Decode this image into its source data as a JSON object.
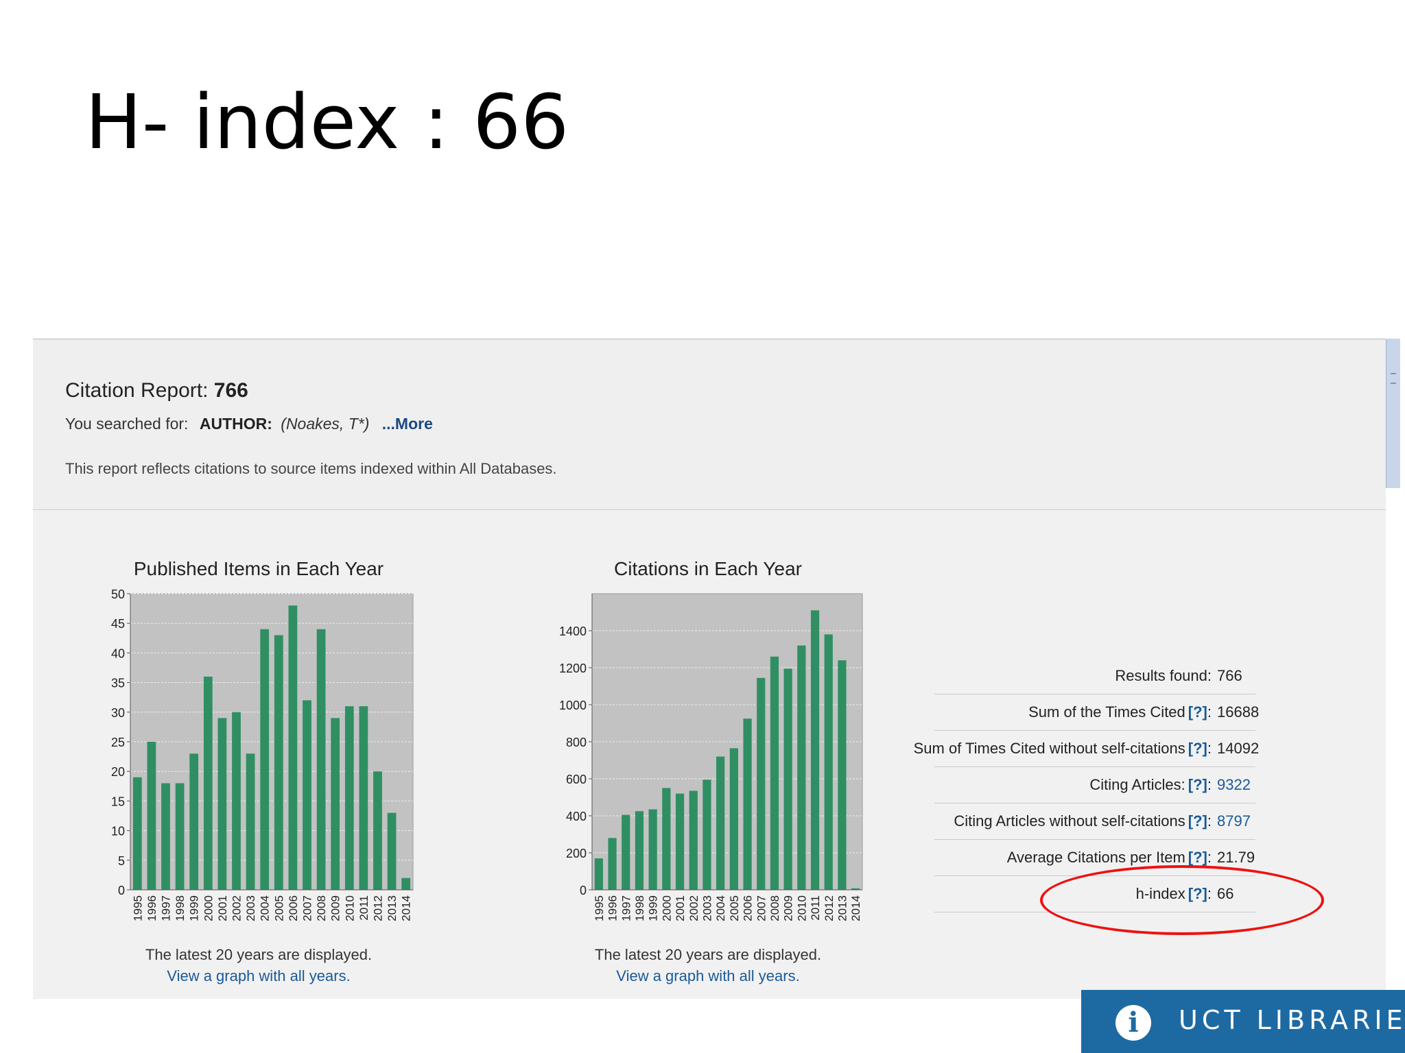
{
  "slide": {
    "title": "H- index : 66"
  },
  "report": {
    "title_prefix": "Citation Report:",
    "title_count": "766",
    "searched_label": "You searched for:",
    "searched_key": "AUTHOR:",
    "searched_query": "(Noakes, T*)",
    "more_link": "...More",
    "reflects_text": "This report reflects citations to source items indexed within All Databases."
  },
  "charts": {
    "published": {
      "title": "Published Items in Each Year",
      "displayed": "The latest 20 years are displayed.",
      "link": "View a graph with all years."
    },
    "citations": {
      "title": "Citations in Each Year",
      "displayed": "The latest 20 years are displayed.",
      "link": "View a graph with all years."
    }
  },
  "chart_data": [
    {
      "type": "bar",
      "title": "Published Items in Each Year",
      "categories": [
        "1995",
        "1996",
        "1997",
        "1998",
        "1999",
        "2000",
        "2001",
        "2002",
        "2003",
        "2004",
        "2005",
        "2006",
        "2007",
        "2008",
        "2009",
        "2010",
        "2011",
        "2012",
        "2013",
        "2014"
      ],
      "values": [
        19,
        25,
        18,
        18,
        23,
        36,
        29,
        30,
        23,
        44,
        43,
        48,
        32,
        44,
        29,
        31,
        31,
        20,
        13,
        2
      ],
      "ylim": [
        0,
        50
      ],
      "yticks": [
        0,
        5,
        10,
        15,
        20,
        25,
        30,
        35,
        40,
        45,
        50
      ],
      "grid": true,
      "bar_color": "#2f8f62",
      "plot_bg": "#c2c2c2"
    },
    {
      "type": "bar",
      "title": "Citations in Each Year",
      "categories": [
        "1995",
        "1996",
        "1997",
        "1998",
        "1999",
        "2000",
        "2001",
        "2002",
        "2003",
        "2004",
        "2005",
        "2006",
        "2007",
        "2008",
        "2009",
        "2010",
        "2011",
        "2012",
        "2013",
        "2014"
      ],
      "values": [
        170,
        280,
        405,
        425,
        435,
        550,
        520,
        535,
        595,
        720,
        765,
        925,
        1145,
        1260,
        1195,
        1320,
        1510,
        1380,
        1240,
        8
      ],
      "ylim": [
        0,
        1600
      ],
      "yticks": [
        0,
        200,
        400,
        600,
        800,
        1000,
        1200,
        1400
      ],
      "grid": true,
      "bar_color": "#2f8f62",
      "plot_bg": "#c2c2c2"
    }
  ],
  "stats": [
    {
      "label": "Results found:",
      "help": "",
      "value": "766",
      "value_link": false
    },
    {
      "label": "Sum of the Times Cited",
      "help": "[?]",
      "value": "16688",
      "value_link": false
    },
    {
      "label": "Sum of Times Cited without self-citations",
      "help": "[?]",
      "value": "14092",
      "value_link": false
    },
    {
      "label": "Citing Articles:",
      "help": "[?]",
      "value": "9322",
      "value_link": true
    },
    {
      "label": "Citing Articles without self-citations",
      "help": "[?]",
      "value": "8797",
      "value_link": true
    },
    {
      "label": "Average Citations per Item",
      "help": "[?]",
      "value": "21.79",
      "value_link": false
    },
    {
      "label": "h-index",
      "help": "[?]",
      "value": "66",
      "value_link": false
    }
  ],
  "logo": {
    "text": "UCT LIBRARIES",
    "icon": "info-i-icon"
  }
}
